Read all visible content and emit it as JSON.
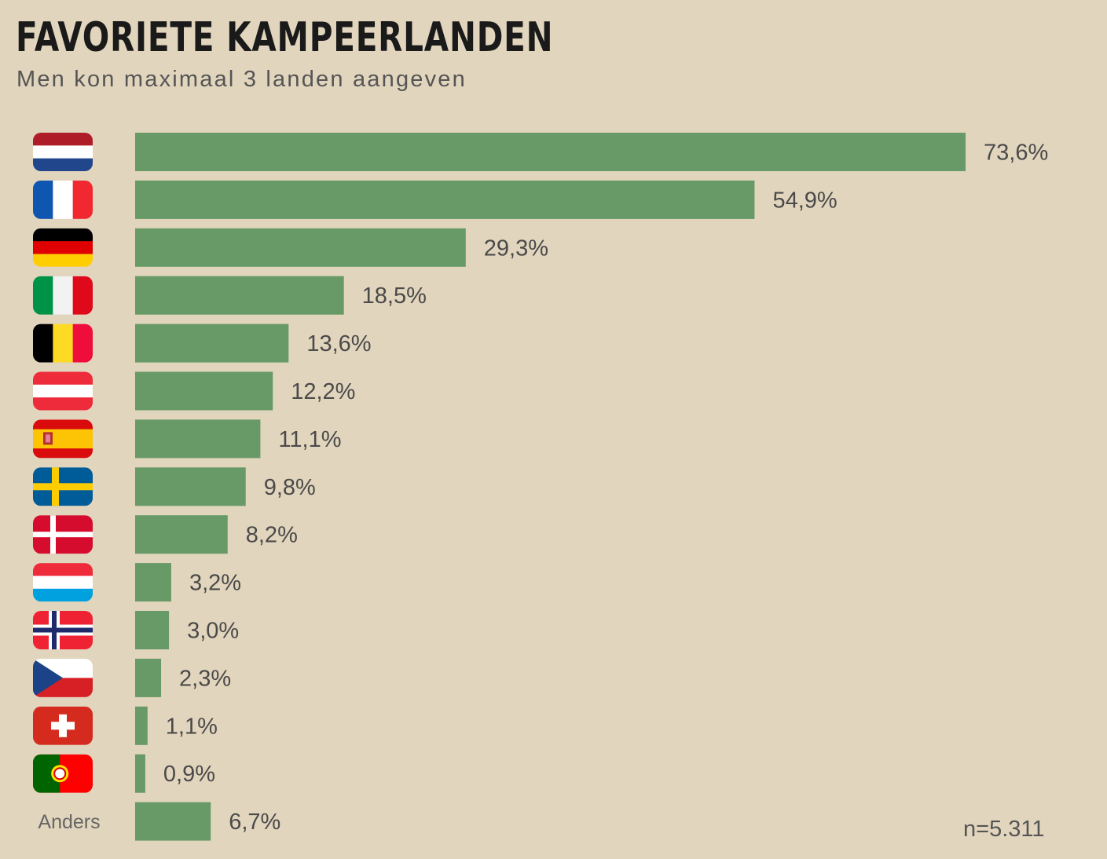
{
  "chart_data": {
    "type": "bar",
    "orientation": "horizontal",
    "title": "FAVORIETE KAMPEERLANDEN",
    "subtitle": "Men kon maximaal 3 landen aangeven",
    "note": "n=5.311",
    "bar_color": "#679a66",
    "background": "#e2d5bd",
    "grid": false,
    "xlim": [
      0,
      73.6
    ],
    "rows": [
      {
        "flag": "netherlands",
        "label": "",
        "value": 73.6,
        "value_label": "73,6%"
      },
      {
        "flag": "france",
        "label": "",
        "value": 54.9,
        "value_label": "54,9%"
      },
      {
        "flag": "germany",
        "label": "",
        "value": 29.3,
        "value_label": "29,3%"
      },
      {
        "flag": "italy",
        "label": "",
        "value": 18.5,
        "value_label": "18,5%"
      },
      {
        "flag": "belgium",
        "label": "",
        "value": 13.6,
        "value_label": "13,6%"
      },
      {
        "flag": "austria",
        "label": "",
        "value": 12.2,
        "value_label": "12,2%"
      },
      {
        "flag": "spain",
        "label": "",
        "value": 11.1,
        "value_label": "11,1%"
      },
      {
        "flag": "sweden",
        "label": "",
        "value": 9.8,
        "value_label": "9,8%"
      },
      {
        "flag": "denmark",
        "label": "",
        "value": 8.2,
        "value_label": "8,2%"
      },
      {
        "flag": "luxembourg",
        "label": "",
        "value": 3.2,
        "value_label": "3,2%"
      },
      {
        "flag": "norway",
        "label": "",
        "value": 3.0,
        "value_label": "3,0%"
      },
      {
        "flag": "czechia",
        "label": "",
        "value": 2.3,
        "value_label": "2,3%"
      },
      {
        "flag": "switzerland",
        "label": "",
        "value": 1.1,
        "value_label": "1,1%"
      },
      {
        "flag": "portugal",
        "label": "",
        "value": 0.9,
        "value_label": "0,9%"
      },
      {
        "flag": "",
        "label": "Anders",
        "value": 6.7,
        "value_label": "6,7%"
      }
    ]
  }
}
